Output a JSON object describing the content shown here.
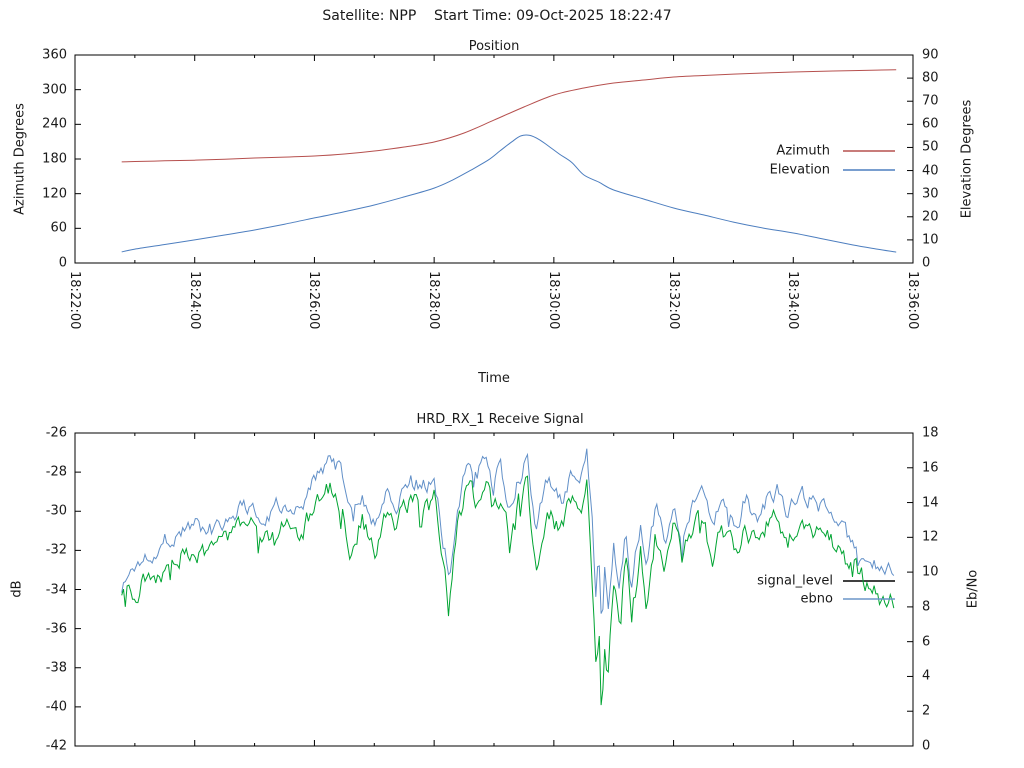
{
  "header": {
    "title": "Satellite: NPP    Start Time: 09-Oct-2025 18:22:47"
  },
  "colors": {
    "background": "#ffffff",
    "axis": "#000000",
    "text": "#1a1a1a"
  },
  "chart_data": [
    {
      "id": "position",
      "type": "line",
      "title": "Position",
      "xlabel": "Time",
      "ylabel_left": "Azimuth Degrees",
      "ylabel_right": "Elevation Degrees",
      "x_unit": "minutes after 18:22:00",
      "x_range": [
        0,
        14
      ],
      "x_major_tick_labels": [
        "18:22:00",
        "18:24:00",
        "18:26:00",
        "18:28:00",
        "18:30:00",
        "18:32:00",
        "18:34:00",
        "18:36:00"
      ],
      "x_minor_tick_interval_min": 1,
      "ylim_left": [
        0,
        360
      ],
      "ytick_step_left": 60,
      "ytick_labels_left": [
        "0",
        "60",
        "120",
        "180",
        "240",
        "300",
        "360"
      ],
      "ylim_right": [
        0,
        90
      ],
      "ytick_step_right": 10,
      "ytick_labels_right": [
        "0",
        "10",
        "20",
        "30",
        "40",
        "50",
        "60",
        "70",
        "80",
        "90"
      ],
      "grid": false,
      "legend_position": "inside-right",
      "series": [
        {
          "name": "Azimuth",
          "axis": "left",
          "color": "#b6504e",
          "legend_sample_color": "#b6504e",
          "points": [
            [
              0.78,
              175
            ],
            [
              1,
              175.7
            ],
            [
              1.5,
              176.8
            ],
            [
              2,
              178
            ],
            [
              2.5,
              179.7
            ],
            [
              3,
              181.7
            ],
            [
              3.5,
              183.3
            ],
            [
              4,
              185.2
            ],
            [
              4.5,
              188.6
            ],
            [
              5,
              193.8
            ],
            [
              5.5,
              200.8
            ],
            [
              6,
              209.4
            ],
            [
              6.5,
              225
            ],
            [
              7,
              247.4
            ],
            [
              7.5,
              270
            ],
            [
              8,
              290.8
            ],
            [
              8.5,
              302.9
            ],
            [
              9,
              311.5
            ],
            [
              9.5,
              316.7
            ],
            [
              10,
              321.9
            ],
            [
              10.5,
              324.6
            ],
            [
              11,
              327
            ],
            [
              11.5,
              328.9
            ],
            [
              12,
              330.5
            ],
            [
              12.5,
              331.9
            ],
            [
              13,
              333
            ],
            [
              13.4,
              333.8
            ],
            [
              13.72,
              334.3
            ]
          ]
        },
        {
          "name": "Elevation",
          "axis": "right",
          "color": "#4d7ebf",
          "legend_sample_color": "#4d7ebf",
          "points": [
            [
              0.78,
              4.8
            ],
            [
              1,
              6
            ],
            [
              1.5,
              8
            ],
            [
              2,
              10
            ],
            [
              2.5,
              12.1
            ],
            [
              3,
              14.3
            ],
            [
              3.5,
              16.8
            ],
            [
              4,
              19.5
            ],
            [
              4.5,
              22.2
            ],
            [
              5,
              25.1
            ],
            [
              5.5,
              28.6
            ],
            [
              6,
              32.4
            ],
            [
              6.3,
              35.8
            ],
            [
              6.6,
              40
            ],
            [
              6.9,
              44.5
            ],
            [
              7.1,
              48.5
            ],
            [
              7.3,
              52.5
            ],
            [
              7.45,
              55
            ],
            [
              7.6,
              55.2
            ],
            [
              7.75,
              53.5
            ],
            [
              7.9,
              50.8
            ],
            [
              8.1,
              47
            ],
            [
              8.3,
              43.5
            ],
            [
              8.5,
              38.1
            ],
            [
              8.75,
              35
            ],
            [
              9,
              31.6
            ],
            [
              9.5,
              27.7
            ],
            [
              10,
              23.8
            ],
            [
              10.5,
              20.8
            ],
            [
              11,
              17.7
            ],
            [
              11.5,
              15.1
            ],
            [
              12,
              13
            ],
            [
              12.5,
              10.4
            ],
            [
              13,
              7.8
            ],
            [
              13.4,
              6
            ],
            [
              13.72,
              4.7
            ]
          ]
        }
      ]
    },
    {
      "id": "receive_signal",
      "type": "line",
      "title": "HRD_RX_1 Receive Signal",
      "xlabel": "",
      "ylabel_left": "dB",
      "ylabel_right": "Eb/No",
      "x_unit": "minutes after 18:22:00",
      "x_range": [
        0,
        14
      ],
      "x_major_tick_labels": [],
      "x_tick_labels_visible": false,
      "x_minor_tick_interval_min": 1,
      "ylim_left": [
        -42,
        -26
      ],
      "ytick_step_left": 2,
      "ytick_labels_left": [
        "-42",
        "-40",
        "-38",
        "-36",
        "-34",
        "-32",
        "-30",
        "-28",
        "-26"
      ],
      "ylim_right": [
        0,
        18
      ],
      "ytick_step_right": 2,
      "ytick_labels_right": [
        "0",
        "2",
        "4",
        "6",
        "8",
        "10",
        "12",
        "14",
        "16",
        "18"
      ],
      "grid": false,
      "legend_position": "inside-right",
      "noise": {
        "seed": 1337,
        "signal_amp": 0.42,
        "ebno_amp": 0.55,
        "step_min": 0.03
      },
      "series": [
        {
          "name": "signal_level",
          "axis": "left",
          "color": "#6290c8",
          "legend_sample_color": "#000000",
          "points": [
            [
              0.78,
              -33.9
            ],
            [
              1,
              -32.8
            ],
            [
              1.3,
              -31.9
            ],
            [
              1.6,
              -31.3
            ],
            [
              2,
              -30.6
            ],
            [
              2.3,
              -30.9
            ],
            [
              2.6,
              -30
            ],
            [
              3,
              -29.6
            ],
            [
              3.2,
              -30.3
            ],
            [
              3.5,
              -29.3
            ],
            [
              3.8,
              -29.6
            ],
            [
              4,
              -28.6
            ],
            [
              4.2,
              -27.4
            ],
            [
              4.4,
              -27.9
            ],
            [
              4.6,
              -29.9
            ],
            [
              4.8,
              -29
            ],
            [
              5,
              -30.6
            ],
            [
              5.2,
              -28.9
            ],
            [
              5.4,
              -29.4
            ],
            [
              5.6,
              -28.3
            ],
            [
              5.8,
              -28.8
            ],
            [
              6,
              -28.2
            ],
            [
              6.25,
              -33.3
            ],
            [
              6.4,
              -29.4
            ],
            [
              6.55,
              -27.6
            ],
            [
              6.7,
              -28.3
            ],
            [
              6.85,
              -27.3
            ],
            [
              7,
              -28.8
            ],
            [
              7.1,
              -27.9
            ],
            [
              7.25,
              -29.8
            ],
            [
              7.4,
              -28.2
            ],
            [
              7.55,
              -27.4
            ],
            [
              7.7,
              -30.6
            ],
            [
              7.85,
              -29
            ],
            [
              8,
              -28.6
            ],
            [
              8.15,
              -29.3
            ],
            [
              8.3,
              -28
            ],
            [
              8.45,
              -28.4
            ],
            [
              8.55,
              -27.3
            ],
            [
              8.65,
              -31.3
            ],
            [
              8.7,
              -34.5
            ],
            [
              8.75,
              -32.5
            ],
            [
              8.8,
              -36.8
            ],
            [
              8.85,
              -33.5
            ],
            [
              8.9,
              -35.5
            ],
            [
              9,
              -31.3
            ],
            [
              9.1,
              -33.8
            ],
            [
              9.2,
              -30.9
            ],
            [
              9.3,
              -33.3
            ],
            [
              9.45,
              -30.4
            ],
            [
              9.55,
              -32.9
            ],
            [
              9.7,
              -29.9
            ],
            [
              9.85,
              -31.9
            ],
            [
              10,
              -29.4
            ],
            [
              10.15,
              -31.4
            ],
            [
              10.3,
              -29.6
            ],
            [
              10.5,
              -29.2
            ],
            [
              10.65,
              -31.1
            ],
            [
              10.8,
              -29.5
            ],
            [
              11,
              -30.9
            ],
            [
              11.2,
              -29.3
            ],
            [
              11.4,
              -30.7
            ],
            [
              11.6,
              -29.2
            ],
            [
              11.75,
              -29
            ],
            [
              11.9,
              -30.3
            ],
            [
              12.1,
              -29.4
            ],
            [
              12.3,
              -29.3
            ],
            [
              12.5,
              -30
            ],
            [
              12.7,
              -30.4
            ],
            [
              12.9,
              -31.5
            ],
            [
              13.1,
              -32
            ],
            [
              13.3,
              -32.8
            ],
            [
              13.5,
              -32.9
            ],
            [
              13.7,
              -33.4
            ]
          ]
        },
        {
          "name": "ebno",
          "axis": "right",
          "color": "#00a432",
          "legend_sample_color": "#6b96c8",
          "points": [
            [
              0.78,
              8.3
            ],
            [
              1,
              8.9
            ],
            [
              1.3,
              9.9
            ],
            [
              1.6,
              10.6
            ],
            [
              2,
              11.4
            ],
            [
              2.3,
              11
            ],
            [
              2.6,
              12.1
            ],
            [
              3,
              12.5
            ],
            [
              3.2,
              11.7
            ],
            [
              3.5,
              12.8
            ],
            [
              3.8,
              12.5
            ],
            [
              4,
              13.6
            ],
            [
              4.2,
              15
            ],
            [
              4.4,
              14.4
            ],
            [
              4.6,
              11.6
            ],
            [
              4.8,
              13.2
            ],
            [
              5,
              10.9
            ],
            [
              5.2,
              13.3
            ],
            [
              5.4,
              12.7
            ],
            [
              5.6,
              14
            ],
            [
              5.8,
              13.4
            ],
            [
              6,
              14.1
            ],
            [
              6.25,
              7.5
            ],
            [
              6.4,
              12.7
            ],
            [
              6.55,
              14.8
            ],
            [
              6.7,
              14
            ],
            [
              6.85,
              15.1
            ],
            [
              7,
              13.4
            ],
            [
              7.1,
              14.4
            ],
            [
              7.25,
              12.3
            ],
            [
              7.4,
              14.1
            ],
            [
              7.55,
              15
            ],
            [
              7.7,
              10.6
            ],
            [
              7.85,
              13.2
            ],
            [
              8,
              13.6
            ],
            [
              8.15,
              12.8
            ],
            [
              8.3,
              14.3
            ],
            [
              8.45,
              13.9
            ],
            [
              8.55,
              15.1
            ],
            [
              8.65,
              9
            ],
            [
              8.7,
              5
            ],
            [
              8.75,
              7.5
            ],
            [
              8.8,
              1.7
            ],
            [
              8.85,
              6
            ],
            [
              8.9,
              3.2
            ],
            [
              9,
              9.5
            ],
            [
              9.1,
              6.5
            ],
            [
              9.2,
              11
            ],
            [
              9.3,
              7.2
            ],
            [
              9.45,
              11.6
            ],
            [
              9.55,
              8.2
            ],
            [
              9.7,
              12.2
            ],
            [
              9.85,
              9.9
            ],
            [
              10,
              12.7
            ],
            [
              10.15,
              10.5
            ],
            [
              10.3,
              12.5
            ],
            [
              10.5,
              13
            ],
            [
              10.65,
              10.8
            ],
            [
              10.8,
              12.6
            ],
            [
              11,
              11
            ],
            [
              11.2,
              12.8
            ],
            [
              11.4,
              11.3
            ],
            [
              11.6,
              13
            ],
            [
              11.75,
              13.2
            ],
            [
              11.9,
              11.7
            ],
            [
              12.1,
              12.7
            ],
            [
              12.3,
              12.8
            ],
            [
              12.5,
              12.1
            ],
            [
              12.7,
              11.6
            ],
            [
              12.9,
              10.4
            ],
            [
              13.1,
              9.8
            ],
            [
              13.3,
              8.9
            ],
            [
              13.5,
              8.8
            ],
            [
              13.7,
              8.2
            ]
          ]
        }
      ]
    }
  ]
}
